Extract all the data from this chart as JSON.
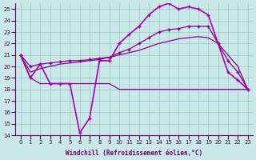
{
  "xlabel": "Windchill (Refroidissement éolien,°C)",
  "bg_color": "#cbe8e8",
  "grid_color": "#a0cccc",
  "line_color": "#aa00aa",
  "xlim": [
    -0.5,
    23.5
  ],
  "ylim": [
    14,
    25.5
  ],
  "yticks": [
    14,
    15,
    16,
    17,
    18,
    19,
    20,
    21,
    22,
    23,
    24,
    25
  ],
  "xticks": [
    0,
    1,
    2,
    3,
    4,
    5,
    6,
    7,
    8,
    9,
    10,
    11,
    12,
    13,
    14,
    15,
    16,
    17,
    18,
    19,
    20,
    21,
    22,
    23
  ],
  "series": [
    {
      "x": [
        0,
        1,
        2,
        3,
        4,
        5,
        6,
        7,
        8,
        9,
        10,
        11,
        12,
        13,
        14,
        15,
        16,
        17,
        18,
        19,
        20,
        21,
        22,
        23
      ],
      "y": [
        21.0,
        19.0,
        18.5,
        18.5,
        18.5,
        18.5,
        18.5,
        18.5,
        18.5,
        18.5,
        18.0,
        18.0,
        18.0,
        18.0,
        18.0,
        18.0,
        18.0,
        18.0,
        18.0,
        18.0,
        18.0,
        18.0,
        18.0,
        18.0
      ],
      "marker": null,
      "linestyle": "-",
      "linewidth": 0.9,
      "color": "#880088"
    },
    {
      "x": [
        0,
        1,
        2,
        3,
        4,
        5,
        6,
        7,
        8,
        9,
        10,
        11,
        12,
        13,
        14,
        15,
        16,
        17,
        18,
        19,
        20,
        21,
        22,
        23
      ],
      "y": [
        21.0,
        19.5,
        19.8,
        20.0,
        20.2,
        20.3,
        20.4,
        20.5,
        20.6,
        20.8,
        21.0,
        21.2,
        21.4,
        21.7,
        22.0,
        22.2,
        22.4,
        22.5,
        22.6,
        22.5,
        22.0,
        21.0,
        20.0,
        18.0
      ],
      "marker": null,
      "linestyle": "-",
      "linewidth": 0.9,
      "color": "#880088"
    },
    {
      "x": [
        0,
        1,
        2,
        3,
        4,
        5,
        6,
        7,
        8,
        9,
        10,
        11,
        12,
        13,
        14,
        15,
        16,
        17,
        18,
        19,
        20,
        21,
        22,
        23
      ],
      "y": [
        21.0,
        20.0,
        20.2,
        20.3,
        20.4,
        20.5,
        20.5,
        20.6,
        20.7,
        20.8,
        21.2,
        21.5,
        22.0,
        22.5,
        23.0,
        23.2,
        23.3,
        23.5,
        23.5,
        23.5,
        22.0,
        20.5,
        19.5,
        18.0
      ],
      "marker": "+",
      "linestyle": "-",
      "linewidth": 0.9,
      "color": "#880088"
    },
    {
      "x": [
        0,
        1,
        2,
        3,
        4,
        5,
        6,
        7,
        8,
        9,
        10,
        11,
        12,
        13,
        14,
        15,
        16,
        17,
        18,
        19,
        20,
        21,
        22,
        23
      ],
      "y": [
        21.0,
        19.0,
        20.2,
        18.5,
        18.5,
        18.5,
        14.2,
        15.5,
        20.5,
        20.5,
        22.0,
        22.8,
        23.5,
        24.5,
        25.2,
        25.5,
        25.0,
        25.2,
        25.0,
        24.5,
        22.0,
        19.5,
        18.8,
        18.0
      ],
      "marker": "+",
      "linestyle": "-",
      "linewidth": 1.2,
      "color": "#aa00aa"
    }
  ]
}
